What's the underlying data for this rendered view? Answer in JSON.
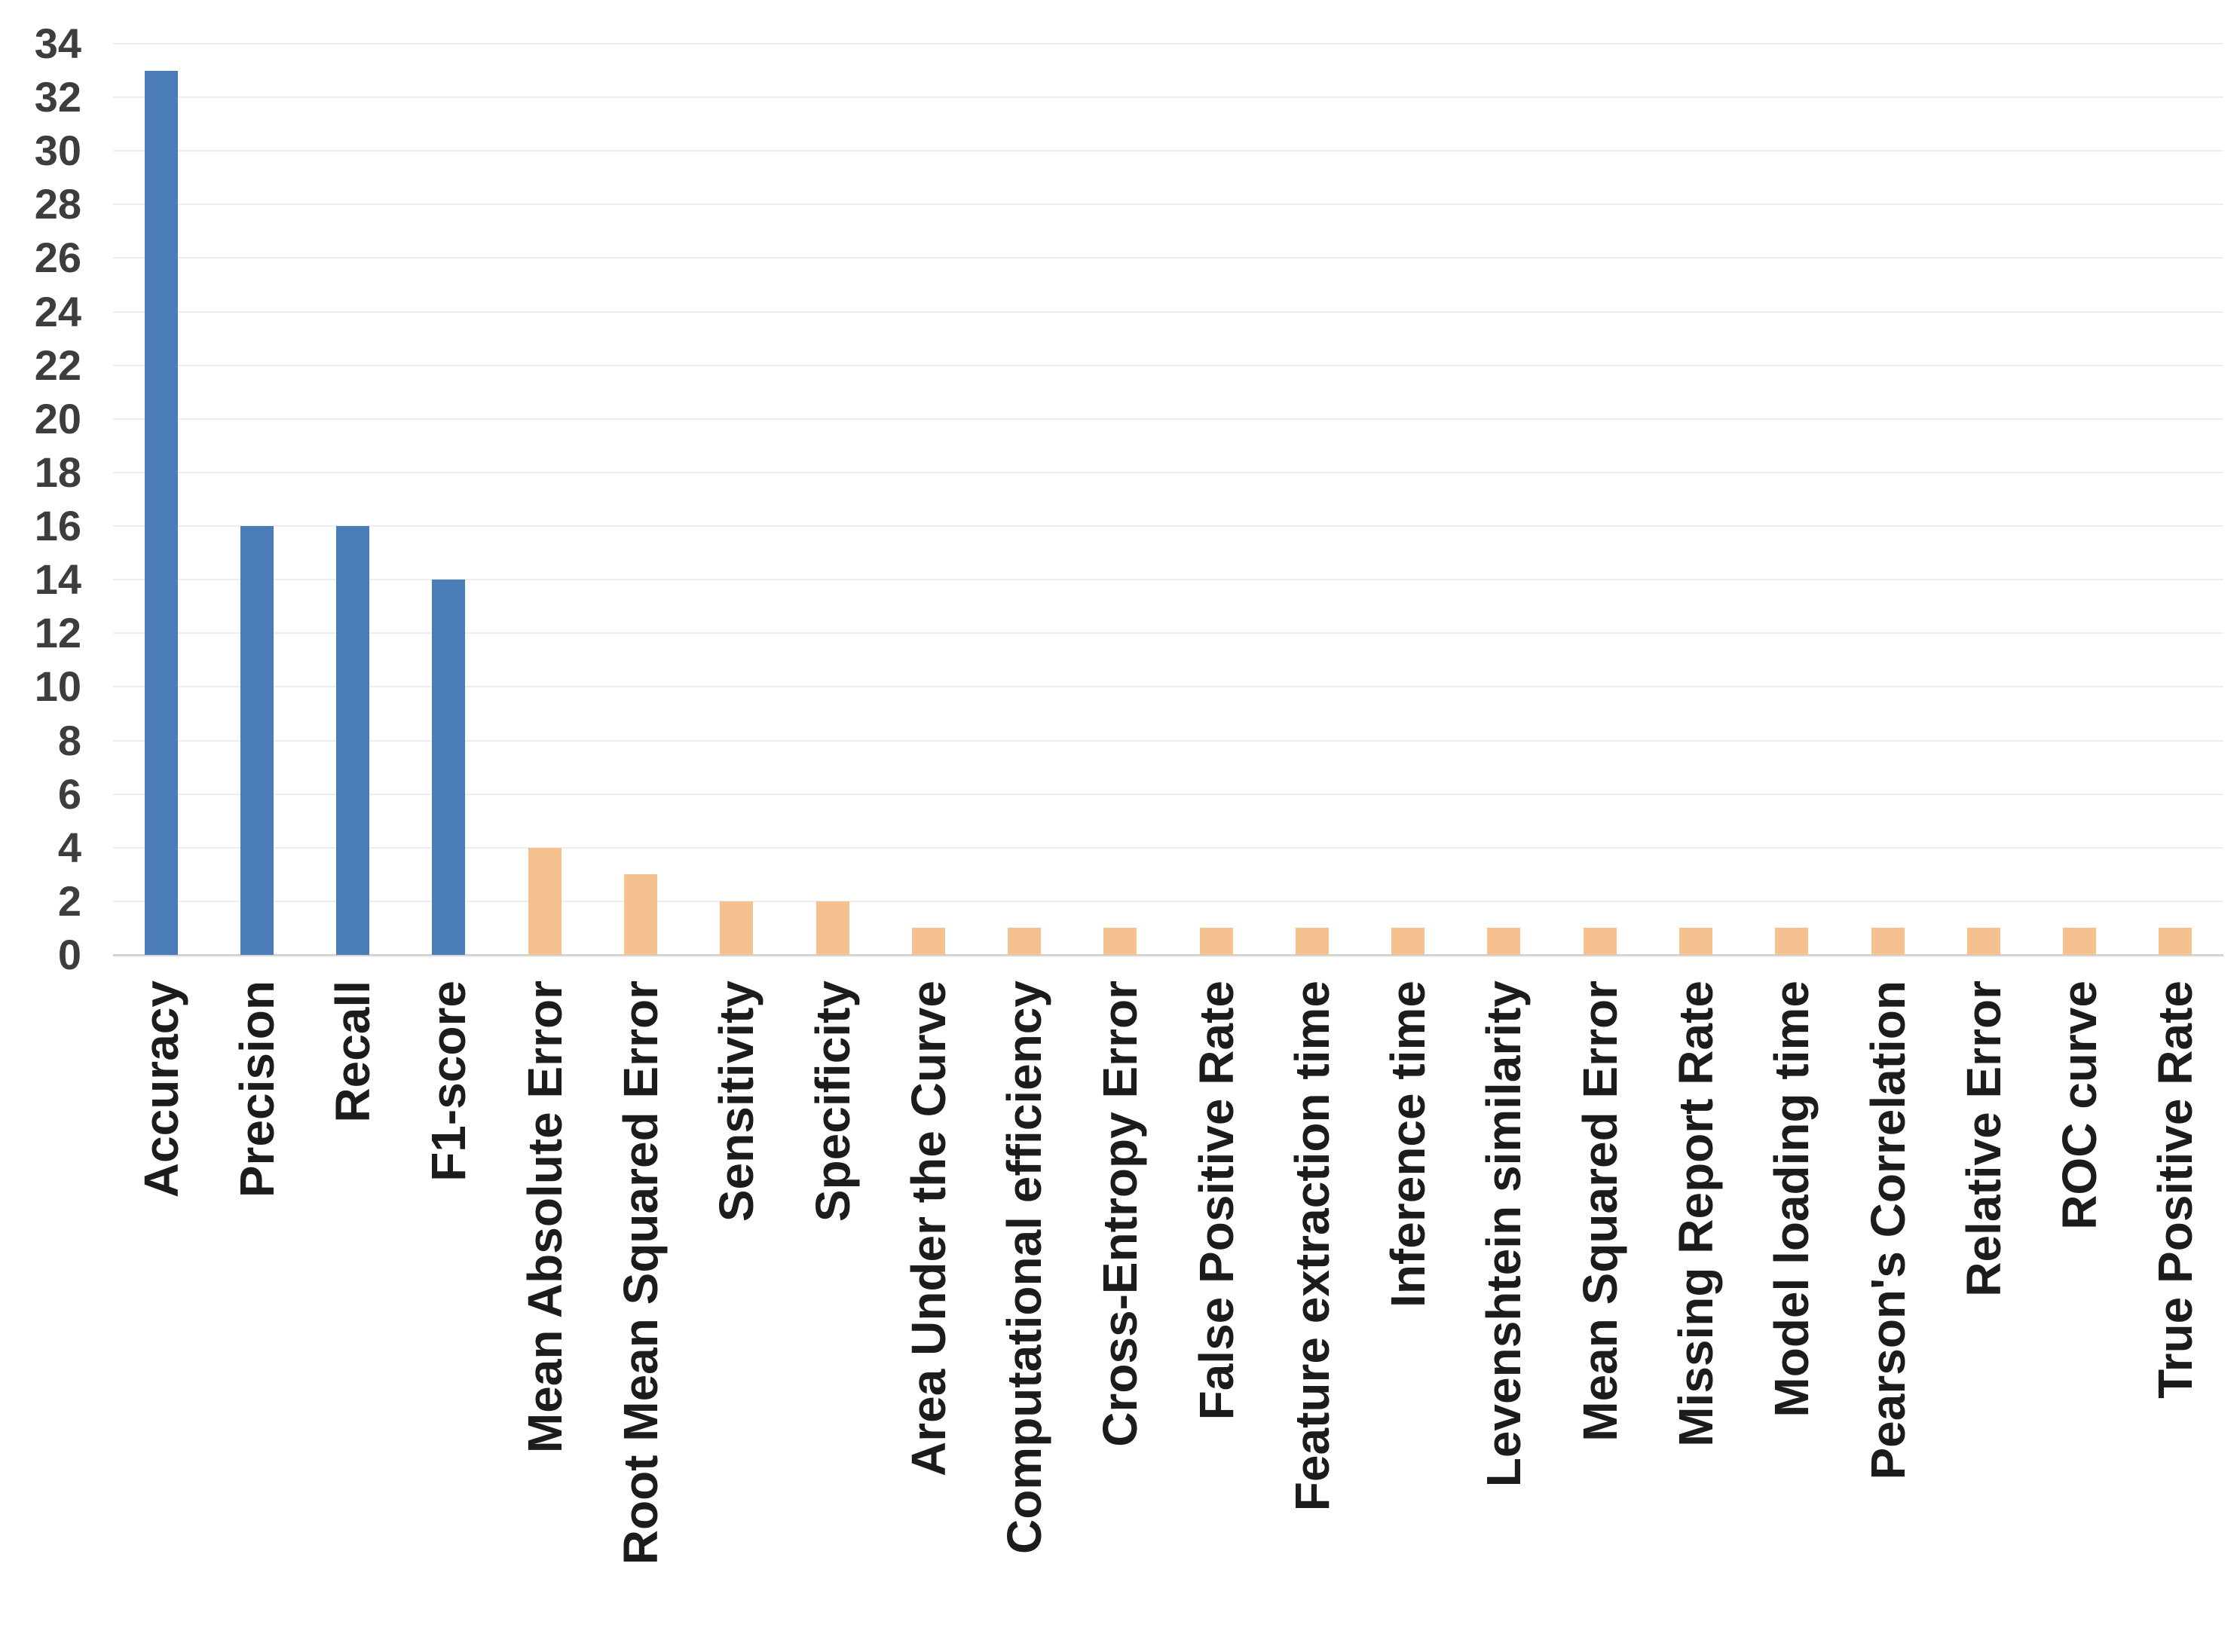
{
  "chart_data": {
    "type": "bar",
    "title": "",
    "xlabel": "",
    "ylabel": "",
    "ylim": [
      0,
      34
    ],
    "yticks": [
      0,
      2,
      4,
      6,
      8,
      10,
      12,
      14,
      16,
      18,
      20,
      22,
      24,
      26,
      28,
      30,
      32,
      34
    ],
    "grid": "horizontal",
    "legend": "none",
    "categories": [
      "Accuracy",
      "Precision",
      "Recall",
      "F1-score",
      "Mean Absolute Error",
      "Root Mean Squared Error",
      "Sensitivity",
      "Specificity",
      "Area Under the Curve",
      "Computational efficiency",
      "Cross-Entropy Error",
      "False Positive Rate",
      "Feature extraction time",
      "Inference time",
      "Levenshtein similarity",
      "Mean Squared Error",
      "Missing Report Rate",
      "Model loading time",
      "Pearson's Correlation",
      "Relative Error",
      "ROC curve",
      "True Positive Rate"
    ],
    "values": [
      33,
      16,
      16,
      14,
      4,
      3,
      2,
      2,
      1,
      1,
      1,
      1,
      1,
      1,
      1,
      1,
      1,
      1,
      1,
      1,
      1,
      1
    ],
    "colors": [
      "#4a7db8",
      "#4a7db8",
      "#4a7db8",
      "#4a7db8",
      "#f5c18f",
      "#f5c18f",
      "#f5c18f",
      "#f5c18f",
      "#f5c18f",
      "#f5c18f",
      "#f5c18f",
      "#f5c18f",
      "#f5c18f",
      "#f5c18f",
      "#f5c18f",
      "#f5c18f",
      "#f5c18f",
      "#f5c18f",
      "#f5c18f",
      "#f5c18f",
      "#f5c18f",
      "#f5c18f"
    ]
  },
  "styles": {
    "background": "#ffffff",
    "bar_blue": "#4a7db8",
    "bar_orange": "#f5c18f",
    "grid_color": "#eeeeee",
    "axis_line_color": "#d4d4d4",
    "ytick_color": "#3d3d3d",
    "xtick_color": "#1c1c1c"
  }
}
